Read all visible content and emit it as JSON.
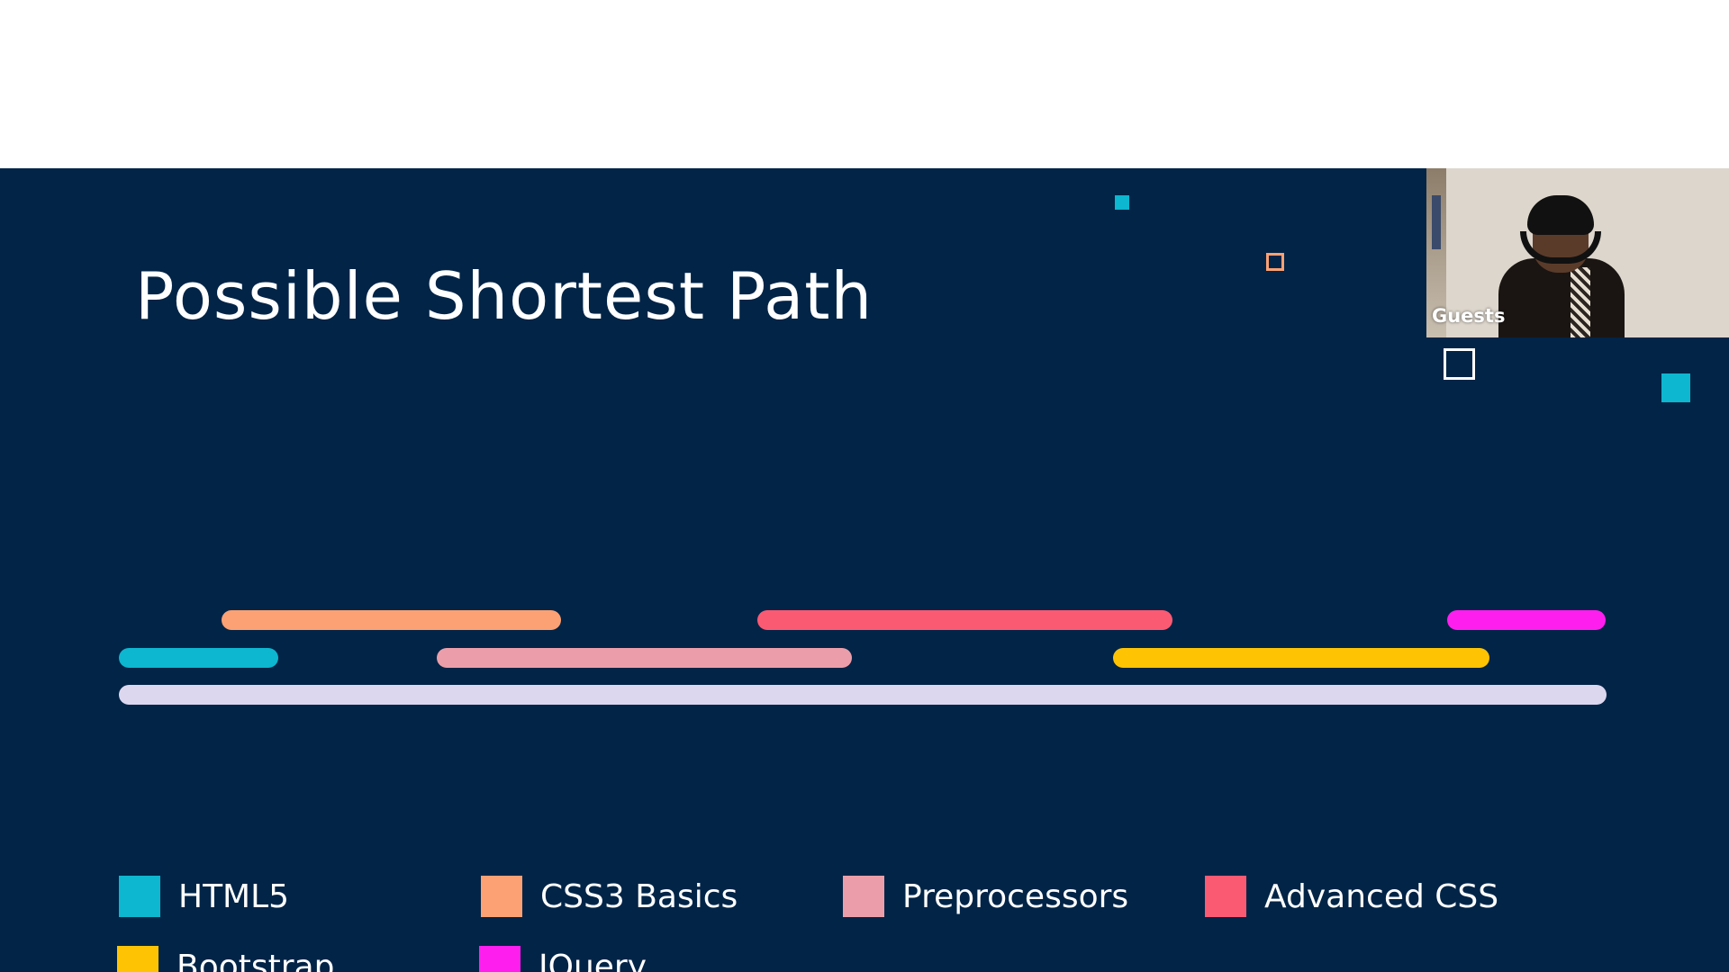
{
  "slide": {
    "title": "Possible Shortest Path",
    "background_color": "#022447"
  },
  "timeline_bars": [
    {
      "name": "html5-bar",
      "topic": "HTML5",
      "color": "#0cb7cf"
    },
    {
      "name": "css3-basics-bar",
      "topic": "CSS3 Basics",
      "color": "#fba174"
    },
    {
      "name": "preprocessors-bar",
      "topic": "Preprocessors",
      "color": "#eb9ea9"
    },
    {
      "name": "advanced-css-bar",
      "topic": "Advanced CSS",
      "color": "#fb5a73"
    },
    {
      "name": "bootstrap-bar",
      "topic": "Bootstrap",
      "color": "#fec404"
    },
    {
      "name": "jquery-bar",
      "topic": "JQuery",
      "color": "#fe1fef"
    },
    {
      "name": "baseline-bar",
      "topic": "",
      "color": "#dcd7ef"
    }
  ],
  "legend": [
    {
      "label": "HTML5",
      "color": "#0cb7cf"
    },
    {
      "label": "CSS3 Basics",
      "color": "#fba174"
    },
    {
      "label": "Preprocessors",
      "color": "#eb9ea9"
    },
    {
      "label": "Advanced CSS",
      "color": "#fb5a73"
    },
    {
      "label": "Bootstrap",
      "color": "#fec404"
    },
    {
      "label": "JQuery",
      "color": "#fe1fef"
    }
  ],
  "video_tile": {
    "participant_label": "Guests"
  }
}
